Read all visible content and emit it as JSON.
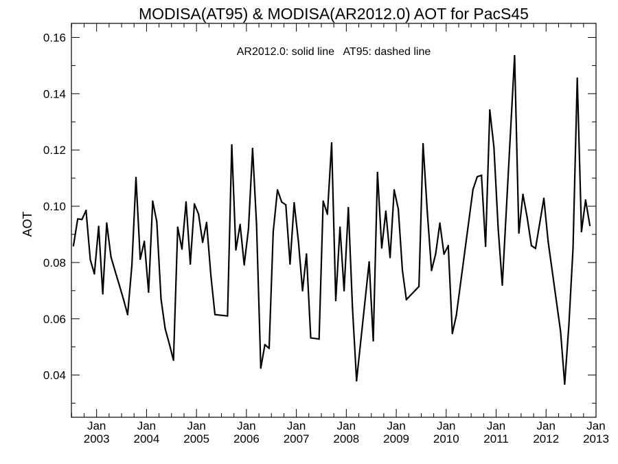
{
  "chart_data": {
    "type": "line",
    "title": "MODISA(AT95) & MODISA(AR2012.0)  AOT for PacS45",
    "annotation": "AR2012.0: solid line   AT95: dashed line",
    "xlabel": "",
    "ylabel": "AOT",
    "xlim": [
      "2002-07-01",
      "2013-01-01"
    ],
    "ylim": [
      0.025,
      0.165
    ],
    "x_tick_top": "Jan",
    "x_tick_years": [
      "2003",
      "2004",
      "2005",
      "2006",
      "2007",
      "2008",
      "2009",
      "2010",
      "2011",
      "2012",
      "2013"
    ],
    "x_tick_dates": [
      "2003-01-01",
      "2004-01-01",
      "2005-01-01",
      "2006-01-01",
      "2007-01-01",
      "2008-01-01",
      "2009-01-01",
      "2010-01-01",
      "2011-01-01",
      "2012-01-01",
      "2013-01-01"
    ],
    "y_ticks": [
      0.04,
      0.06,
      0.08,
      0.1,
      0.12,
      0.14,
      0.16
    ],
    "y_tick_labels": [
      "0.04",
      "0.06",
      "0.08",
      "0.10",
      "0.12",
      "0.14",
      "0.16"
    ],
    "grid": false,
    "series": [
      {
        "name": "AR2012.0",
        "line_style": "solid",
        "color": "#000000",
        "points": [
          [
            "2002-07-16",
            0.086
          ],
          [
            "2002-08-16",
            0.0955
          ],
          [
            "2002-09-16",
            0.0953
          ],
          [
            "2002-10-16",
            0.0985
          ],
          [
            "2002-11-16",
            0.081
          ],
          [
            "2002-12-16",
            0.076
          ],
          [
            "2003-01-16",
            0.0928
          ],
          [
            "2003-02-15",
            0.0689
          ],
          [
            "2003-03-16",
            0.094
          ],
          [
            "2003-04-16",
            0.082
          ],
          [
            "2003-05-16",
            0.077
          ],
          [
            "2003-06-16",
            0.072
          ],
          [
            "2003-07-16",
            0.067
          ],
          [
            "2003-08-16",
            0.0615
          ],
          [
            "2003-09-16",
            0.079
          ],
          [
            "2003-10-16",
            0.1102
          ],
          [
            "2003-11-16",
            0.0812
          ],
          [
            "2003-12-16",
            0.0875
          ],
          [
            "2004-01-16",
            0.0695
          ],
          [
            "2004-02-15",
            0.1018
          ],
          [
            "2004-03-16",
            0.0945
          ],
          [
            "2004-04-16",
            0.067
          ],
          [
            "2004-05-16",
            0.0565
          ],
          [
            "2004-06-16",
            0.051
          ],
          [
            "2004-07-16",
            0.0453
          ],
          [
            "2004-08-16",
            0.0925
          ],
          [
            "2004-09-16",
            0.0848
          ],
          [
            "2004-10-16",
            0.1015
          ],
          [
            "2004-11-16",
            0.0795
          ],
          [
            "2004-12-16",
            0.1008
          ],
          [
            "2005-01-16",
            0.0972
          ],
          [
            "2005-02-15",
            0.0872
          ],
          [
            "2005-03-16",
            0.0942
          ],
          [
            "2005-04-16",
            0.0755
          ],
          [
            "2005-05-16",
            0.0615
          ],
          [
            "2005-08-16",
            0.061
          ],
          [
            "2005-09-16",
            0.1218
          ],
          [
            "2005-10-16",
            0.0845
          ],
          [
            "2005-11-16",
            0.0935
          ],
          [
            "2005-12-16",
            0.0792
          ],
          [
            "2006-01-16",
            0.092
          ],
          [
            "2006-02-15",
            0.1205
          ],
          [
            "2006-03-16",
            0.0935
          ],
          [
            "2006-04-16",
            0.0425
          ],
          [
            "2006-05-16",
            0.0508
          ],
          [
            "2006-06-16",
            0.0495
          ],
          [
            "2006-07-16",
            0.091
          ],
          [
            "2006-08-16",
            0.1058
          ],
          [
            "2006-09-16",
            0.1015
          ],
          [
            "2006-10-16",
            0.1005
          ],
          [
            "2006-11-16",
            0.0795
          ],
          [
            "2006-12-16",
            0.1012
          ],
          [
            "2007-01-16",
            0.0875
          ],
          [
            "2007-02-15",
            0.07
          ],
          [
            "2007-03-16",
            0.083
          ],
          [
            "2007-04-16",
            0.0532
          ],
          [
            "2007-06-16",
            0.0528
          ],
          [
            "2007-07-16",
            0.1018
          ],
          [
            "2007-08-16",
            0.0972
          ],
          [
            "2007-09-16",
            0.1225
          ],
          [
            "2007-10-16",
            0.0665
          ],
          [
            "2007-11-16",
            0.0925
          ],
          [
            "2007-12-16",
            0.07
          ],
          [
            "2008-01-16",
            0.0995
          ],
          [
            "2008-02-15",
            0.064
          ],
          [
            "2008-03-16",
            0.038
          ],
          [
            "2008-06-16",
            0.0802
          ],
          [
            "2008-07-16",
            0.0522
          ],
          [
            "2008-08-16",
            0.112
          ],
          [
            "2008-09-16",
            0.0852
          ],
          [
            "2008-10-16",
            0.0982
          ],
          [
            "2008-11-16",
            0.0818
          ],
          [
            "2008-12-16",
            0.1058
          ],
          [
            "2009-01-16",
            0.099
          ],
          [
            "2009-02-15",
            0.0772
          ],
          [
            "2009-03-16",
            0.0668
          ],
          [
            "2009-06-16",
            0.0715
          ],
          [
            "2009-07-16",
            0.1222
          ],
          [
            "2009-08-16",
            0.098
          ],
          [
            "2009-09-16",
            0.0772
          ],
          [
            "2009-10-16",
            0.083
          ],
          [
            "2009-11-16",
            0.094
          ],
          [
            "2009-12-16",
            0.083
          ],
          [
            "2010-01-16",
            0.086
          ],
          [
            "2010-02-15",
            0.0548
          ],
          [
            "2010-03-16",
            0.0612
          ],
          [
            "2010-07-16",
            0.106
          ],
          [
            "2010-08-16",
            0.1105
          ],
          [
            "2010-09-16",
            0.111
          ],
          [
            "2010-10-16",
            0.0858
          ],
          [
            "2010-11-16",
            0.1342
          ],
          [
            "2010-12-16",
            0.121
          ],
          [
            "2011-01-16",
            0.092
          ],
          [
            "2011-02-15",
            0.072
          ],
          [
            "2011-05-16",
            0.1535
          ],
          [
            "2011-06-16",
            0.0905
          ],
          [
            "2011-07-16",
            0.1042
          ],
          [
            "2011-08-16",
            0.096
          ],
          [
            "2011-09-16",
            0.086
          ],
          [
            "2011-10-16",
            0.085
          ],
          [
            "2011-12-16",
            0.1028
          ],
          [
            "2012-01-16",
            0.0875
          ],
          [
            "2012-04-16",
            0.0555
          ],
          [
            "2012-05-16",
            0.0368
          ],
          [
            "2012-06-16",
            0.058
          ],
          [
            "2012-07-16",
            0.085
          ],
          [
            "2012-08-16",
            0.1455
          ],
          [
            "2012-09-16",
            0.091
          ],
          [
            "2012-10-16",
            0.1022
          ],
          [
            "2012-11-16",
            0.0932
          ]
        ]
      }
    ]
  }
}
